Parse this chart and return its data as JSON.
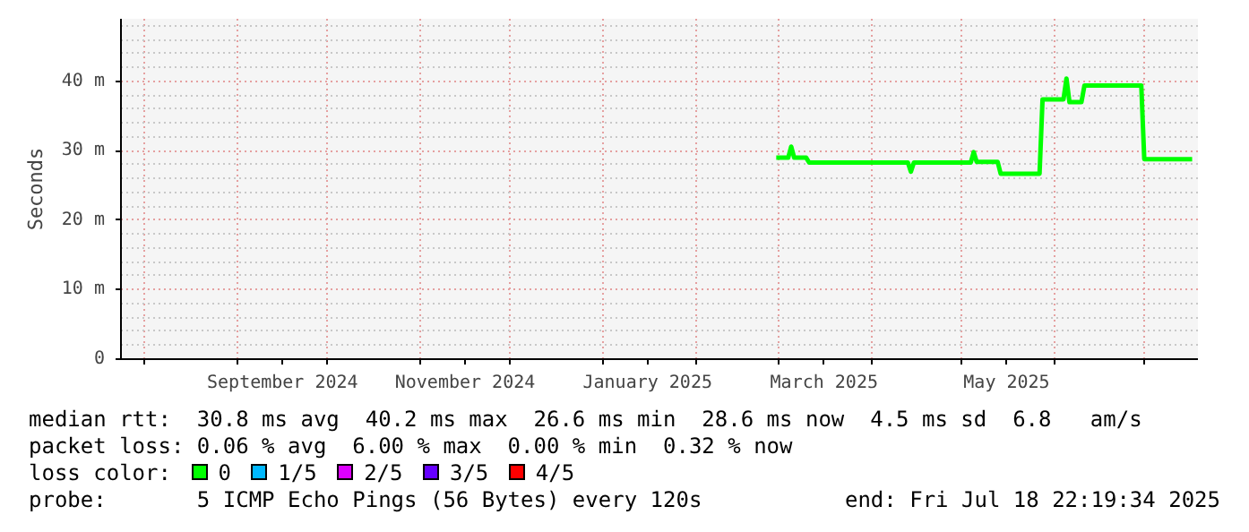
{
  "chart_data": {
    "type": "line",
    "ylabel": "Seconds",
    "x": [
      "2025-02-28",
      "2025-03-04",
      "2025-03-05",
      "2025-03-06",
      "2025-03-10",
      "2025-03-11",
      "2025-04-13",
      "2025-04-14",
      "2025-04-15",
      "2025-05-04",
      "2025-05-05",
      "2025-05-06",
      "2025-05-13",
      "2025-05-14",
      "2025-05-27",
      "2025-05-28",
      "2025-06-04",
      "2025-06-05",
      "2025-06-06",
      "2025-06-10",
      "2025-06-11",
      "2025-06-30",
      "2025-07-01",
      "2025-07-17"
    ],
    "series": [
      {
        "name": "0",
        "color": "#00ff00",
        "values": [
          29.0,
          29.0,
          30.6,
          29.0,
          29.0,
          28.3,
          28.3,
          27.0,
          28.3,
          28.3,
          29.8,
          28.4,
          28.4,
          26.7,
          26.7,
          37.4,
          37.4,
          40.4,
          37.0,
          37.0,
          39.4,
          39.4,
          28.8,
          28.8
        ]
      },
      {
        "name": "1/5",
        "color": "#00b8ff",
        "values": [
          null,
          null,
          null,
          null,
          null,
          null,
          null,
          null,
          null,
          null,
          null,
          null,
          null,
          null,
          null,
          null,
          null,
          null,
          null,
          null,
          null,
          null,
          null,
          null
        ]
      },
      {
        "name": "2/5",
        "color": "#dd00ff",
        "values": [
          null,
          null,
          null,
          null,
          null,
          null,
          null,
          null,
          null,
          null,
          null,
          null,
          null,
          null,
          null,
          null,
          null,
          null,
          null,
          null,
          null,
          null,
          null,
          null
        ]
      },
      {
        "name": "3/5",
        "color": "#6600ff",
        "values": [
          null,
          null,
          null,
          null,
          null,
          null,
          null,
          null,
          null,
          null,
          null,
          null,
          null,
          null,
          null,
          null,
          null,
          null,
          null,
          null,
          null,
          null,
          null,
          null
        ]
      },
      {
        "name": "4/5",
        "color": "#ff0000",
        "values": [
          null,
          null,
          null,
          null,
          null,
          null,
          null,
          null,
          null,
          null,
          null,
          null,
          null,
          null,
          null,
          null,
          null,
          null,
          null,
          null,
          null,
          null,
          null,
          null
        ]
      }
    ],
    "xlim": [
      "2024-07-24",
      "2025-07-18T22:19"
    ],
    "xticks": [
      {
        "value": "2024-08-01",
        "label": null
      },
      {
        "value": "2024-09-01",
        "label": null
      },
      {
        "value": "2024-09-16",
        "label": "September 2024"
      },
      {
        "value": "2024-10-01",
        "label": null
      },
      {
        "value": "2024-11-01",
        "label": null
      },
      {
        "value": "2024-11-16",
        "label": "November 2024"
      },
      {
        "value": "2024-12-01",
        "label": null
      },
      {
        "value": "2025-01-01",
        "label": null
      },
      {
        "value": "2025-01-16",
        "label": "January 2025"
      },
      {
        "value": "2025-02-01",
        "label": null
      },
      {
        "value": "2025-03-01",
        "label": null
      },
      {
        "value": "2025-03-16",
        "label": "March 2025"
      },
      {
        "value": "2025-04-01",
        "label": null
      },
      {
        "value": "2025-05-01",
        "label": null
      },
      {
        "value": "2025-05-16",
        "label": "May 2025"
      },
      {
        "value": "2025-06-01",
        "label": null
      },
      {
        "value": "2025-07-01",
        "label": null
      }
    ],
    "ylim": [
      0,
      49
    ],
    "yticks": [
      {
        "value": 0,
        "label": "0"
      },
      {
        "value": 10,
        "label": "10 m"
      },
      {
        "value": 20,
        "label": "20 m"
      },
      {
        "value": 30,
        "label": "30 m"
      },
      {
        "value": 40,
        "label": "40 m"
      }
    ],
    "grid": true,
    "legend": "bottom",
    "legend_title": "loss color:",
    "annotations": [
      "median rtt:  30.8 ms avg  40.2 ms max  26.6 ms min  28.6 ms now  4.5 ms sd  6.8   am/s",
      "packet loss: 0.06 % avg  6.00 % max  0.00 % min  0.32 % now",
      "probe:       5 ICMP Echo Pings (56 Bytes) every 120s",
      "end: Fri Jul 18 22:19:34 2025"
    ]
  }
}
